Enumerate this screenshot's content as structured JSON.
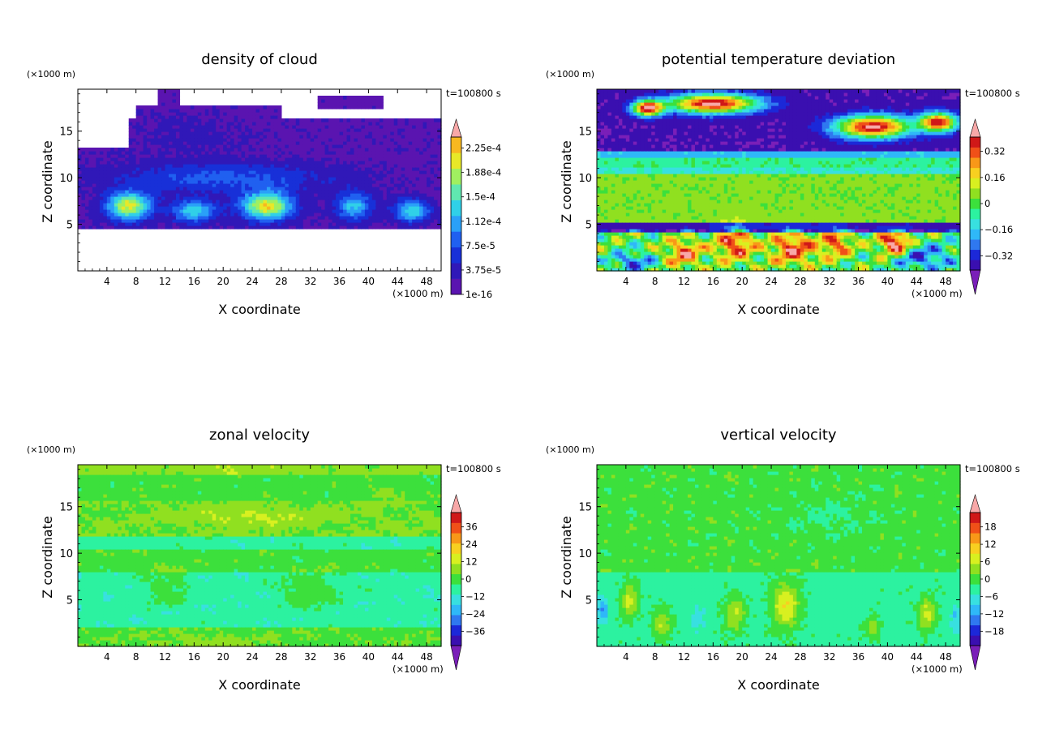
{
  "figure": {
    "panels": [
      {
        "title": "density of cloud",
        "xlabel": "X coordinate",
        "ylabel": "Z coordinate",
        "x_unit": "(×1000 m)",
        "y_unit": "(×1000 m)",
        "time": "t=100800 s",
        "colorbar": {
          "labels": [
            "2.25e-4",
            "1.88e-4",
            "1.5e-4",
            "1.12e-4",
            "7.5e-5",
            "3.75e-5",
            "1e-16"
          ],
          "extend_top": true,
          "extend_bottom": false
        }
      },
      {
        "title": "potential temperature deviation",
        "xlabel": "X coordinate",
        "ylabel": "Z coordinate",
        "x_unit": "(×1000 m)",
        "y_unit": "(×1000 m)",
        "time": "t=100800 s",
        "colorbar": {
          "labels": [
            "0.32",
            "0.16",
            "0",
            "−0.16",
            "−0.32"
          ],
          "extend_top": true,
          "extend_bottom": true
        }
      },
      {
        "title": "zonal velocity",
        "xlabel": "X coordinate",
        "ylabel": "Z coordinate",
        "x_unit": "(×1000 m)",
        "y_unit": "(×1000 m)",
        "time": "t=100800 s",
        "colorbar": {
          "labels": [
            "36",
            "24",
            "12",
            "0",
            "−12",
            "−24",
            "−36"
          ],
          "extend_top": true,
          "extend_bottom": true
        }
      },
      {
        "title": "vertical velocity",
        "xlabel": "X coordinate",
        "ylabel": "Z coordinate",
        "x_unit": "(×1000 m)",
        "y_unit": "(×1000 m)",
        "time": "t=100800 s",
        "colorbar": {
          "labels": [
            "18",
            "12",
            "6",
            "0",
            "−6",
            "−12",
            "−18"
          ],
          "extend_top": true,
          "extend_bottom": true
        }
      }
    ]
  },
  "chart_data": [
    {
      "type": "heatmap",
      "title": "density of cloud",
      "xlabel": "X coordinate",
      "ylabel": "Z coordinate",
      "x_ticks": [
        4,
        8,
        12,
        16,
        20,
        24,
        28,
        32,
        36,
        40,
        44,
        48
      ],
      "y_ticks": [
        5,
        10,
        15
      ],
      "xlim": [
        0,
        50
      ],
      "ylim": [
        0,
        19.5
      ],
      "colorbar_levels": [
        1e-16,
        3.75e-05,
        7.5e-05,
        0.000112,
        0.00015,
        0.000188,
        0.000225
      ],
      "background": "#ffffff",
      "field": {
        "base": 0.03,
        "blobs": [
          {
            "x": 7.0,
            "z": 7.0,
            "sx": 3.0,
            "sz": 1.5,
            "a": 0.85
          },
          {
            "x": 16.0,
            "z": 6.5,
            "sx": 3.0,
            "sz": 1.2,
            "a": 0.55
          },
          {
            "x": 26.0,
            "z": 7.0,
            "sx": 3.5,
            "sz": 1.5,
            "a": 0.9
          },
          {
            "x": 38.0,
            "z": 7.0,
            "sx": 2.5,
            "sz": 1.5,
            "a": 0.5
          },
          {
            "x": 46.0,
            "z": 6.5,
            "sx": 2.5,
            "sz": 1.2,
            "a": 0.55
          },
          {
            "x": 20.0,
            "z": 10.0,
            "sx": 15.0,
            "sz": 1.6,
            "a": 0.28
          },
          {
            "x": 15.0,
            "z": 14.5,
            "sx": 8.0,
            "sz": 2.0,
            "a": 0.06
          }
        ],
        "mask": [
          {
            "x0": 0,
            "x1": 50,
            "z0": 4.5,
            "z1": 13.3
          },
          {
            "x0": 7,
            "x1": 50,
            "z0": 13.3,
            "z1": 16.2
          },
          {
            "x0": 8,
            "x1": 28,
            "z0": 16.2,
            "z1": 17.8
          },
          {
            "x0": 11,
            "x1": 14,
            "z0": 17.8,
            "z1": 19.5
          },
          {
            "x0": 33,
            "x1": 42,
            "z0": 17.5,
            "z1": 18.8
          }
        ]
      }
    },
    {
      "type": "heatmap",
      "title": "potential temperature deviation",
      "xlabel": "X coordinate",
      "ylabel": "Z coordinate",
      "x_ticks": [
        4,
        8,
        12,
        16,
        20,
        24,
        28,
        32,
        36,
        40,
        44,
        48
      ],
      "y_ticks": [
        5,
        10,
        15
      ],
      "xlim": [
        0,
        50
      ],
      "ylim": [
        0,
        19.5
      ],
      "colorbar_levels": [
        -0.32,
        -0.16,
        0,
        0.16,
        0.32
      ],
      "field": {
        "base": 0.5,
        "bands": [
          {
            "z0": 13.0,
            "z1": 19.5,
            "v": 0.05
          },
          {
            "z0": 12.3,
            "z1": 13.0,
            "v": 0.3
          },
          {
            "z0": 11.3,
            "z1": 12.3,
            "v": 0.45
          },
          {
            "z0": 10.6,
            "z1": 11.3,
            "v": 0.38
          },
          {
            "z0": 5.2,
            "z1": 10.6,
            "v": 0.55
          },
          {
            "z0": 4.3,
            "z1": 5.2,
            "v": 0.08
          }
        ],
        "blobs": [
          {
            "x": 16.0,
            "z": 18.0,
            "sx": 6.0,
            "sz": 1.0,
            "a": 0.95
          },
          {
            "x": 7.0,
            "z": 17.5,
            "sx": 2.0,
            "sz": 0.8,
            "a": 0.95
          },
          {
            "x": 38.0,
            "z": 15.5,
            "sx": 5.0,
            "sz": 1.2,
            "a": 0.95
          },
          {
            "x": 47.0,
            "z": 16.0,
            "sx": 2.5,
            "sz": 1.0,
            "a": 0.9
          },
          {
            "x": 12.0,
            "z": 2.0,
            "sx": 2.5,
            "sz": 1.5,
            "a": 0.35
          },
          {
            "x": 19.0,
            "z": 3.0,
            "sx": 2.5,
            "sz": 1.8,
            "a": 0.4
          },
          {
            "x": 27.0,
            "z": 2.5,
            "sx": 3.0,
            "sz": 1.8,
            "a": 0.4
          },
          {
            "x": 33.0,
            "z": 3.0,
            "sx": 2.0,
            "sz": 1.5,
            "a": 0.35
          },
          {
            "x": 41.0,
            "z": 3.0,
            "sx": 2.0,
            "sz": 1.2,
            "a": 0.55
          },
          {
            "x": 5.0,
            "z": 1.0,
            "sx": 3.0,
            "sz": 1.0,
            "a": -0.3
          },
          {
            "x": 45.0,
            "z": 1.5,
            "sx": 4.0,
            "sz": 1.5,
            "a": -0.3
          }
        ],
        "waves": [
          {
            "z0": 0,
            "z1": 4.5,
            "amp": 0.22,
            "kx": 1.3,
            "kz": 1.1
          }
        ]
      }
    },
    {
      "type": "heatmap",
      "title": "zonal velocity",
      "xlabel": "X coordinate",
      "ylabel": "Z coordinate",
      "x_ticks": [
        4,
        8,
        12,
        16,
        20,
        24,
        28,
        32,
        36,
        40,
        44,
        48
      ],
      "y_ticks": [
        5,
        10,
        15
      ],
      "xlim": [
        0,
        50
      ],
      "ylim": [
        0,
        19.5
      ],
      "colorbar_levels": [
        -36,
        -24,
        -12,
        0,
        12,
        24,
        36
      ],
      "field": {
        "base": 0.5,
        "bands": [
          {
            "z0": 18.5,
            "z1": 19.5,
            "v": 0.56
          },
          {
            "z0": 15.5,
            "z1": 18.5,
            "v": 0.5
          },
          {
            "z0": 12.0,
            "z1": 15.5,
            "v": 0.54
          },
          {
            "z0": 10.5,
            "z1": 12.0,
            "v": 0.43
          },
          {
            "z0": 8.0,
            "z1": 10.5,
            "v": 0.5
          },
          {
            "z0": 2.0,
            "z1": 8.0,
            "v": 0.42
          },
          {
            "z0": 0.0,
            "z1": 2.0,
            "v": 0.52
          }
        ],
        "blobs": [
          {
            "x": 24.0,
            "z": 14.0,
            "sx": 9.0,
            "sz": 0.9,
            "a": 0.08
          },
          {
            "x": 12.0,
            "z": 6.5,
            "sx": 3.0,
            "sz": 2.0,
            "a": 0.09
          },
          {
            "x": 32.0,
            "z": 6.0,
            "sx": 4.0,
            "sz": 2.0,
            "a": 0.1
          },
          {
            "x": 17.0,
            "z": 0.5,
            "sx": 6.0,
            "sz": 0.8,
            "a": 0.06
          },
          {
            "x": 42.0,
            "z": 16.5,
            "sx": 3.0,
            "sz": 0.8,
            "a": 0.06
          },
          {
            "x": 20.0,
            "z": 19.2,
            "sx": 5.0,
            "sz": 0.5,
            "a": 0.05
          }
        ],
        "waves": [
          {
            "z0": 0,
            "z1": 19.5,
            "amp": 0.025,
            "kx": 0.7,
            "kz": 0.9
          }
        ]
      }
    },
    {
      "type": "heatmap",
      "title": "vertical velocity",
      "xlabel": "X coordinate",
      "ylabel": "Z coordinate",
      "x_ticks": [
        4,
        8,
        12,
        16,
        20,
        24,
        28,
        32,
        36,
        40,
        44,
        48
      ],
      "y_ticks": [
        5,
        10,
        15
      ],
      "xlim": [
        0,
        50
      ],
      "ylim": [
        0,
        19.5
      ],
      "colorbar_levels": [
        -18,
        -12,
        -6,
        0,
        6,
        12,
        18
      ],
      "field": {
        "base": 0.5,
        "bands": [
          {
            "z0": 8.0,
            "z1": 19.5,
            "v": 0.5
          },
          {
            "z0": 0.0,
            "z1": 8.0,
            "v": 0.44
          }
        ],
        "blobs": [
          {
            "x": 4.5,
            "z": 5.0,
            "sx": 1.2,
            "sz": 1.8,
            "a": 0.2
          },
          {
            "x": 9.0,
            "z": 2.5,
            "sx": 1.2,
            "sz": 1.5,
            "a": 0.16
          },
          {
            "x": 19.0,
            "z": 3.5,
            "sx": 1.4,
            "sz": 1.8,
            "a": 0.18
          },
          {
            "x": 26.0,
            "z": 4.5,
            "sx": 1.8,
            "sz": 2.5,
            "a": 0.24
          },
          {
            "x": 38.0,
            "z": 2.0,
            "sx": 1.0,
            "sz": 1.2,
            "a": 0.14
          },
          {
            "x": 45.5,
            "z": 3.5,
            "sx": 1.2,
            "sz": 1.8,
            "a": 0.2
          },
          {
            "x": 0.8,
            "z": 4.0,
            "sx": 0.8,
            "sz": 1.5,
            "a": -0.18
          },
          {
            "x": 14.0,
            "z": 3.0,
            "sx": 1.2,
            "sz": 1.5,
            "a": -0.08
          },
          {
            "x": 49.5,
            "z": 3.0,
            "sx": 0.8,
            "sz": 1.5,
            "a": -0.14
          },
          {
            "x": 32.0,
            "z": 14.0,
            "sx": 6.0,
            "sz": 2.0,
            "a": -0.05
          }
        ],
        "waves": [
          {
            "z0": 8,
            "z1": 19.5,
            "amp": 0.03,
            "kx": 1.1,
            "kz": 0.8
          }
        ]
      }
    }
  ]
}
